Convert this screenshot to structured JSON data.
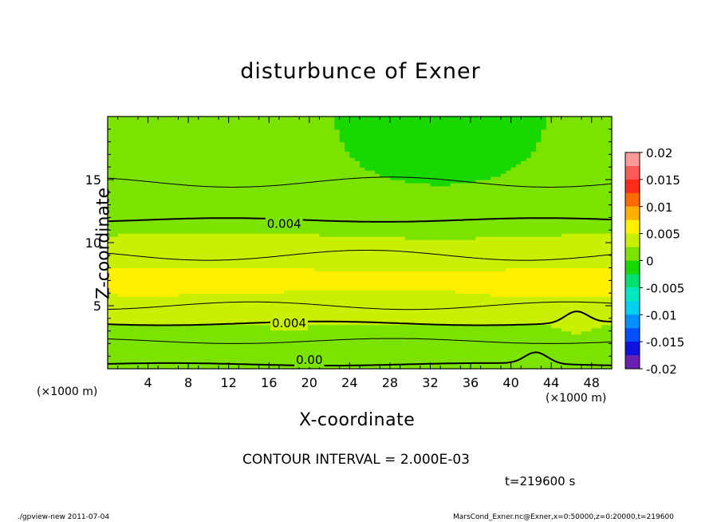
{
  "page": {
    "footer_left": "./gpview-new  2011-07-04",
    "footer_right": "MarsCond_Exner.nc@Exner,x=0:50000,z=0:20000,t=219600",
    "contour_interval": "CONTOUR INTERVAL = 2.000E-03",
    "time": "t=219600 s"
  },
  "chart_data": {
    "type": "heatmap",
    "title": "disturbunce of Exner",
    "xlabel": "X-coordinate",
    "ylabel": "Z-coordinate",
    "x_unit": "(×1000 m)",
    "z_unit": "(×1000 m)",
    "xlim": [
      0,
      50
    ],
    "ylim": [
      0,
      20
    ],
    "x_ticks": [
      4,
      8,
      12,
      16,
      20,
      24,
      28,
      32,
      36,
      40,
      44,
      48
    ],
    "y_ticks": [
      5,
      10,
      15
    ],
    "colorbar": {
      "ticks": [
        "0.02",
        "0.015",
        "0.01",
        "0.005",
        "0",
        "-0.005",
        "-0.01",
        "-0.015",
        "-0.02"
      ],
      "range": [
        -0.02,
        0.02
      ],
      "bands": [
        {
          "from": 0.0175,
          "to": 0.02,
          "color": "#ff9a9a"
        },
        {
          "from": 0.015,
          "to": 0.0175,
          "color": "#ff5a5a"
        },
        {
          "from": 0.0125,
          "to": 0.015,
          "color": "#ff2a1a"
        },
        {
          "from": 0.01,
          "to": 0.0125,
          "color": "#ff6a00"
        },
        {
          "from": 0.0075,
          "to": 0.01,
          "color": "#ffb000"
        },
        {
          "from": 0.005,
          "to": 0.0075,
          "color": "#fff000"
        },
        {
          "from": 0.0025,
          "to": 0.005,
          "color": "#c8f000"
        },
        {
          "from": 0.0,
          "to": 0.0025,
          "color": "#7ce200"
        },
        {
          "from": -0.0025,
          "to": 0.0,
          "color": "#18d800"
        },
        {
          "from": -0.005,
          "to": -0.0025,
          "color": "#00e070"
        },
        {
          "from": -0.0075,
          "to": -0.005,
          "color": "#00e8c0"
        },
        {
          "from": -0.01,
          "to": -0.0075,
          "color": "#00d0f0"
        },
        {
          "from": -0.0125,
          "to": -0.01,
          "color": "#0090ff"
        },
        {
          "from": -0.015,
          "to": -0.0125,
          "color": "#0050ff"
        },
        {
          "from": -0.0175,
          "to": -0.015,
          "color": "#1010e0"
        },
        {
          "from": -0.02,
          "to": -0.0175,
          "color": "#6a20b0"
        }
      ]
    },
    "contour_labels": [
      {
        "text": "0.004",
        "x": 17.5,
        "z": 11.5
      },
      {
        "text": "0.004",
        "x": 18.0,
        "z": 3.6
      },
      {
        "text": "0.00",
        "x": 20.0,
        "z": 0.7
      }
    ]
  }
}
